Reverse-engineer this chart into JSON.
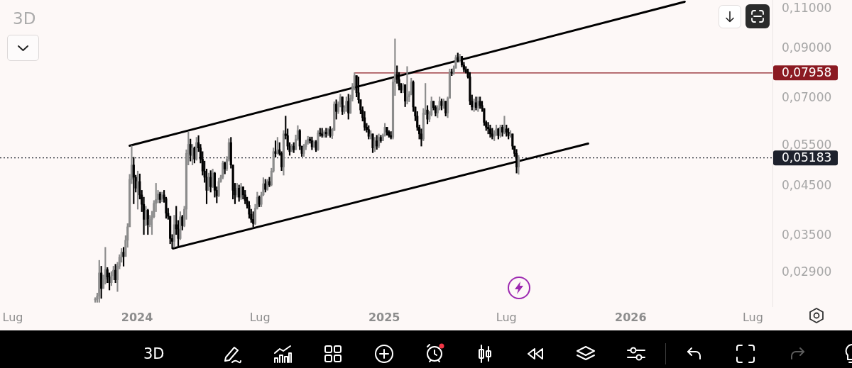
{
  "chart_data": {
    "type": "candlestick",
    "title": "3D",
    "log": true,
    "xlim": [
      "2023-06-12",
      "2026-07-30"
    ],
    "xticks": [
      {
        "value": "2023-07-01",
        "label": "Lug"
      },
      {
        "value": "2024-01-01",
        "label": "2024"
      },
      {
        "value": "2024-07-01",
        "label": "Lug"
      },
      {
        "value": "2025-01-01",
        "label": "2025"
      },
      {
        "value": "2025-07-01",
        "label": "Lug"
      },
      {
        "value": "2026-01-01",
        "label": "2026"
      },
      {
        "value": "2026-07-01",
        "label": "Lug"
      }
    ],
    "ylim": [
      0.0245,
      0.115
    ],
    "yticks": [
      {
        "value": 0.029,
        "label": "0,02900"
      },
      {
        "value": 0.035,
        "label": "0,03500"
      },
      {
        "value": 0.045,
        "label": "0,04500"
      },
      {
        "value": 0.055,
        "label": "0,05500"
      },
      {
        "value": 0.07,
        "label": "0,07000"
      },
      {
        "value": 0.09,
        "label": "0,09000"
      },
      {
        "value": 0.11,
        "label": "0,11000"
      }
    ],
    "colors": [
      "#8c8c8c",
      "#8c8c8c",
      "#8c8c8c",
      "#000000",
      "#8c8c8c",
      "#8c8c8c",
      "#000000",
      "#000000",
      "#8c8c8c",
      "#8c8c8c",
      "#000000",
      "#8c8c8c",
      "#8c8c8c",
      "#8c8c8c",
      "#000000",
      "#8c8c8c",
      "#8c8c8c",
      "#8c8c8c",
      "#8c8c8c",
      "#000000",
      "#000000",
      "#8c8c8c",
      "#000000",
      "#000000",
      "#000000",
      "#8c8c8c",
      "#000000",
      "#8c8c8c",
      "#8c8c8c",
      "#8c8c8c",
      "#8c8c8c",
      "#8c8c8c",
      "#000000",
      "#8c8c8c",
      "#000000",
      "#000000",
      "#000000",
      "#000000",
      "#000000",
      "#8c8c8c",
      "#000000",
      "#000000",
      "#8c8c8c",
      "#000000",
      "#8c8c8c",
      "#8c8c8c",
      "#8c8c8c",
      "#000000",
      "#8c8c8c",
      "#000000",
      "#8c8c8c",
      "#000000",
      "#000000",
      "#000000",
      "#000000",
      "#000000",
      "#8c8c8c",
      "#000000",
      "#8c8c8c",
      "#000000",
      "#000000",
      "#8c8c8c",
      "#8c8c8c",
      "#8c8c8c",
      "#000000",
      "#8c8c8c",
      "#8c8c8c",
      "#000000",
      "#000000",
      "#000000",
      "#8c8c8c",
      "#000000",
      "#8c8c8c",
      "#000000",
      "#000000",
      "#000000",
      "#000000",
      "#000000",
      "#000000",
      "#8c8c8c",
      "#8c8c8c",
      "#000000",
      "#8c8c8c",
      "#8c8c8c",
      "#000000",
      "#8c8c8c",
      "#000000",
      "#8c8c8c",
      "#8c8c8c",
      "#000000",
      "#8c8c8c",
      "#000000",
      "#000000",
      "#8c8c8c",
      "#000000",
      "#000000",
      "#000000",
      "#8c8c8c",
      "#000000",
      "#8c8c8c",
      "#8c8c8c",
      "#000000",
      "#000000",
      "#8c8c8c",
      "#8c8c8c",
      "#8c8c8c",
      "#000000",
      "#000000",
      "#8c8c8c",
      "#000000",
      "#8c8c8c",
      "#000000",
      "#000000",
      "#8c8c8c",
      "#000000",
      "#8c8c8c",
      "#000000",
      "#8c8c8c",
      "#8c8c8c",
      "#000000",
      "#8c8c8c",
      "#8c8c8c",
      "#000000",
      "#8c8c8c",
      "#8c8c8c",
      "#000000",
      "#8c8c8c",
      "#8c8c8c",
      "#8c8c8c",
      "#000000",
      "#000000",
      "#000000",
      "#000000",
      "#000000",
      "#000000",
      "#000000",
      "#8c8c8c",
      "#000000",
      "#8c8c8c",
      "#000000",
      "#8c8c8c",
      "#000000",
      "#8c8c8c",
      "#8c8c8c",
      "#000000",
      "#000000",
      "#000000",
      "#8c8c8c",
      "#8c8c8c",
      "#000000",
      "#000000",
      "#000000",
      "#8c8c8c",
      "#000000",
      "#8c8c8c",
      "#8c8c8c",
      "#8c8c8c",
      "#000000",
      "#000000",
      "#000000",
      "#000000",
      "#000000",
      "#8c8c8c",
      "#8c8c8c",
      "#000000",
      "#8c8c8c",
      "#8c8c8c",
      "#000000",
      "#000000",
      "#8c8c8c",
      "#8c8c8c",
      "#000000",
      "#8c8c8c",
      "#000000",
      "#8c8c8c",
      "#8c8c8c",
      "#000000",
      "#8c8c8c",
      "#8c8c8c",
      "#000000",
      "#8c8c8c",
      "#000000",
      "#000000",
      "#000000",
      "#000000",
      "#000000",
      "#000000",
      "#8c8c8c",
      "#000000",
      "#8c8c8c",
      "#000000",
      "#000000",
      "#000000",
      "#000000",
      "#000000",
      "#000000",
      "#000000",
      "#8c8c8c",
      "#8c8c8c",
      "#000000",
      "#8c8c8c",
      "#000000",
      "#8c8c8c",
      "#000000",
      "#000000",
      "#8c8c8c",
      "#000000",
      "#000000",
      "#000000",
      "#8c8c8c"
    ],
    "x": [
      "2023-10-31",
      "2023-11-03",
      "2023-11-06",
      "2023-11-09",
      "2023-11-12",
      "2023-11-15",
      "2023-11-18",
      "2023-11-21",
      "2023-11-24",
      "2023-11-27",
      "2023-11-30",
      "2023-12-03",
      "2023-12-06",
      "2023-12-09",
      "2023-12-12",
      "2023-12-15",
      "2023-12-18",
      "2023-12-21",
      "2023-12-24",
      "2023-12-27",
      "2023-12-30",
      "2024-01-02",
      "2024-01-05",
      "2024-01-08",
      "2024-01-11",
      "2024-01-14",
      "2024-01-17",
      "2024-01-20",
      "2024-01-23",
      "2024-01-26",
      "2024-01-29",
      "2024-02-01",
      "2024-02-04",
      "2024-02-07",
      "2024-02-10",
      "2024-02-13",
      "2024-02-16",
      "2024-02-19",
      "2024-02-22",
      "2024-02-25",
      "2024-02-28",
      "2024-03-02",
      "2024-03-05",
      "2024-03-08",
      "2024-03-11",
      "2024-03-14",
      "2024-03-17",
      "2024-03-20",
      "2024-03-23",
      "2024-03-26",
      "2024-03-29",
      "2024-04-01",
      "2024-04-04",
      "2024-04-07",
      "2024-04-10",
      "2024-04-13",
      "2024-04-16",
      "2024-04-19",
      "2024-04-22",
      "2024-04-25",
      "2024-04-28",
      "2024-05-01",
      "2024-05-04",
      "2024-05-07",
      "2024-05-10",
      "2024-05-13",
      "2024-05-16",
      "2024-05-19",
      "2024-05-22",
      "2024-05-25",
      "2024-05-28",
      "2024-05-31",
      "2024-06-03",
      "2024-06-06",
      "2024-06-09",
      "2024-06-12",
      "2024-06-15",
      "2024-06-18",
      "2024-06-21",
      "2024-06-24",
      "2024-06-27",
      "2024-06-30",
      "2024-07-03",
      "2024-07-06",
      "2024-07-09",
      "2024-07-12",
      "2024-07-15",
      "2024-07-18",
      "2024-07-21",
      "2024-07-24",
      "2024-07-27",
      "2024-07-30",
      "2024-08-02",
      "2024-08-05",
      "2024-08-08",
      "2024-08-11",
      "2024-08-14",
      "2024-08-17",
      "2024-08-20",
      "2024-08-23",
      "2024-08-26",
      "2024-08-29",
      "2024-09-01",
      "2024-09-04",
      "2024-09-07",
      "2024-09-10",
      "2024-09-13",
      "2024-09-16",
      "2024-09-19",
      "2024-09-22",
      "2024-09-25",
      "2024-09-28",
      "2024-10-01",
      "2024-10-04",
      "2024-10-07",
      "2024-10-10",
      "2024-10-13",
      "2024-10-16",
      "2024-10-19",
      "2024-10-22",
      "2024-10-25",
      "2024-10-28",
      "2024-10-31",
      "2024-11-03",
      "2024-11-06",
      "2024-11-09",
      "2024-11-12",
      "2024-11-15",
      "2024-11-18",
      "2024-11-21",
      "2024-11-24",
      "2024-11-27",
      "2024-11-30",
      "2024-12-03",
      "2024-12-06",
      "2024-12-09",
      "2024-12-12",
      "2024-12-15",
      "2024-12-18",
      "2024-12-21",
      "2024-12-24",
      "2024-12-27",
      "2024-12-30",
      "2025-01-02",
      "2025-01-05",
      "2025-01-08",
      "2025-01-11",
      "2025-01-14",
      "2025-01-17",
      "2025-01-20",
      "2025-01-23",
      "2025-01-26",
      "2025-01-29",
      "2025-02-01",
      "2025-02-04",
      "2025-02-07",
      "2025-02-10",
      "2025-02-13",
      "2025-02-16",
      "2025-02-19",
      "2025-02-22",
      "2025-02-25",
      "2025-02-28",
      "2025-03-03",
      "2025-03-06",
      "2025-03-09",
      "2025-03-12",
      "2025-03-15",
      "2025-03-18",
      "2025-03-21",
      "2025-03-24",
      "2025-03-27",
      "2025-03-30",
      "2025-04-02",
      "2025-04-05",
      "2025-04-08",
      "2025-04-11",
      "2025-04-14",
      "2025-04-17",
      "2025-04-20",
      "2025-04-23",
      "2025-04-26",
      "2025-04-29",
      "2025-05-02",
      "2025-05-05",
      "2025-05-08",
      "2025-05-11",
      "2025-05-14",
      "2025-05-17",
      "2025-05-20",
      "2025-05-23",
      "2025-05-26",
      "2025-05-29",
      "2025-06-01",
      "2025-06-04",
      "2025-06-07",
      "2025-06-10",
      "2025-06-13",
      "2025-06-16",
      "2025-06-19",
      "2025-06-22",
      "2025-06-25",
      "2025-06-28",
      "2025-07-01",
      "2025-07-04",
      "2025-07-07",
      "2025-07-10",
      "2025-07-13",
      "2025-07-16",
      "2025-07-19"
    ],
    "ohlc": [
      [
        0.0253,
        0.0256,
        0.025,
        0.0254
      ],
      [
        0.0254,
        0.0262,
        0.025,
        0.0258
      ],
      [
        0.0258,
        0.0309,
        0.025,
        0.029
      ],
      [
        0.029,
        0.03,
        0.0255,
        0.0268
      ],
      [
        0.0268,
        0.0287,
        0.0268,
        0.0281
      ],
      [
        0.0281,
        0.033,
        0.0274,
        0.0295
      ],
      [
        0.0295,
        0.0298,
        0.0276,
        0.0284
      ],
      [
        0.0284,
        0.029,
        0.0266,
        0.0276
      ],
      [
        0.0276,
        0.0292,
        0.0272,
        0.0286
      ],
      [
        0.0286,
        0.03,
        0.028,
        0.0294
      ],
      [
        0.0294,
        0.0303,
        0.0276,
        0.028
      ],
      [
        0.028,
        0.0306,
        0.0264,
        0.03
      ],
      [
        0.03,
        0.0318,
        0.0296,
        0.0314
      ],
      [
        0.0314,
        0.0328,
        0.0306,
        0.0322
      ],
      [
        0.0322,
        0.033,
        0.03,
        0.0315
      ],
      [
        0.0315,
        0.035,
        0.0315,
        0.0342
      ],
      [
        0.0342,
        0.0372,
        0.033,
        0.0366
      ],
      [
        0.0366,
        0.0477,
        0.0366,
        0.0465
      ],
      [
        0.0465,
        0.0551,
        0.0455,
        0.05
      ],
      [
        0.05,
        0.052,
        0.0411,
        0.047
      ],
      [
        0.047,
        0.0475,
        0.0436,
        0.0445
      ],
      [
        0.0445,
        0.0485,
        0.04,
        0.046
      ],
      [
        0.046,
        0.0478,
        0.0421,
        0.043
      ],
      [
        0.043,
        0.044,
        0.0395,
        0.041
      ],
      [
        0.041,
        0.0425,
        0.0352,
        0.038
      ],
      [
        0.038,
        0.0406,
        0.0368,
        0.0398
      ],
      [
        0.0398,
        0.04,
        0.0352,
        0.037
      ],
      [
        0.037,
        0.0388,
        0.0366,
        0.038
      ],
      [
        0.038,
        0.0396,
        0.0352,
        0.0385
      ],
      [
        0.0385,
        0.0418,
        0.0383,
        0.0412
      ],
      [
        0.0412,
        0.0456,
        0.0395,
        0.042
      ],
      [
        0.042,
        0.044,
        0.0413,
        0.0432
      ],
      [
        0.0432,
        0.0436,
        0.0413,
        0.042
      ],
      [
        0.042,
        0.0436,
        0.0415,
        0.043
      ],
      [
        0.043,
        0.044,
        0.0414,
        0.0422
      ],
      [
        0.0422,
        0.0425,
        0.0382,
        0.0392
      ],
      [
        0.0392,
        0.0402,
        0.038,
        0.0386
      ],
      [
        0.0386,
        0.0386,
        0.0336,
        0.0345
      ],
      [
        0.0345,
        0.0352,
        0.0328,
        0.034
      ],
      [
        0.034,
        0.0388,
        0.033,
        0.037
      ],
      [
        0.037,
        0.0406,
        0.0352,
        0.0362
      ],
      [
        0.0362,
        0.0378,
        0.0332,
        0.0345
      ],
      [
        0.0345,
        0.0395,
        0.0343,
        0.0385
      ],
      [
        0.0385,
        0.0388,
        0.036,
        0.0368
      ],
      [
        0.0368,
        0.0406,
        0.0366,
        0.04
      ],
      [
        0.04,
        0.054,
        0.038,
        0.053
      ],
      [
        0.053,
        0.0591,
        0.05,
        0.0555
      ],
      [
        0.0555,
        0.057,
        0.051,
        0.0525
      ],
      [
        0.0525,
        0.0555,
        0.05,
        0.0545
      ],
      [
        0.0545,
        0.0548,
        0.0505,
        0.0515
      ],
      [
        0.0515,
        0.0575,
        0.0512,
        0.056
      ],
      [
        0.056,
        0.058,
        0.0535,
        0.0545
      ],
      [
        0.0545,
        0.0555,
        0.0505,
        0.0515
      ],
      [
        0.0515,
        0.0535,
        0.0475,
        0.0485
      ],
      [
        0.0485,
        0.051,
        0.0458,
        0.047
      ],
      [
        0.047,
        0.049,
        0.0411,
        0.044
      ],
      [
        0.044,
        0.048,
        0.044,
        0.047
      ],
      [
        0.047,
        0.0486,
        0.0436,
        0.0448
      ],
      [
        0.0448,
        0.049,
        0.0446,
        0.048
      ],
      [
        0.048,
        0.0482,
        0.0425,
        0.044
      ],
      [
        0.044,
        0.0448,
        0.0413,
        0.0428
      ],
      [
        0.0428,
        0.0468,
        0.0426,
        0.046
      ],
      [
        0.046,
        0.0475,
        0.0458,
        0.047
      ],
      [
        0.047,
        0.051,
        0.0466,
        0.0505
      ],
      [
        0.0505,
        0.0508,
        0.0478,
        0.049
      ],
      [
        0.049,
        0.0522,
        0.0486,
        0.0515
      ],
      [
        0.0515,
        0.0571,
        0.051,
        0.056
      ],
      [
        0.056,
        0.0575,
        0.0492,
        0.05
      ],
      [
        0.05,
        0.05,
        0.0421,
        0.044
      ],
      [
        0.044,
        0.0456,
        0.0411,
        0.043
      ],
      [
        0.043,
        0.0456,
        0.0425,
        0.0445
      ],
      [
        0.0445,
        0.0452,
        0.0416,
        0.0425
      ],
      [
        0.0425,
        0.0456,
        0.042,
        0.0448
      ],
      [
        0.0448,
        0.0448,
        0.0421,
        0.043
      ],
      [
        0.043,
        0.044,
        0.0411,
        0.0418
      ],
      [
        0.0418,
        0.0425,
        0.0402,
        0.0408
      ],
      [
        0.0408,
        0.0416,
        0.0382,
        0.039
      ],
      [
        0.039,
        0.04,
        0.0374,
        0.038
      ],
      [
        0.038,
        0.0395,
        0.0366,
        0.0372
      ],
      [
        0.0372,
        0.041,
        0.037,
        0.0402
      ],
      [
        0.0402,
        0.0436,
        0.04,
        0.0425
      ],
      [
        0.0425,
        0.0428,
        0.0405,
        0.041
      ],
      [
        0.041,
        0.0436,
        0.0405,
        0.043
      ],
      [
        0.043,
        0.0469,
        0.0428,
        0.0455
      ],
      [
        0.0455,
        0.0465,
        0.0436,
        0.0442
      ],
      [
        0.0442,
        0.0465,
        0.044,
        0.046
      ],
      [
        0.046,
        0.047,
        0.0448,
        0.0452
      ],
      [
        0.0452,
        0.0492,
        0.045,
        0.0485
      ],
      [
        0.0485,
        0.0545,
        0.0482,
        0.0535
      ],
      [
        0.0535,
        0.0565,
        0.052,
        0.053
      ],
      [
        0.053,
        0.0575,
        0.0528,
        0.054
      ],
      [
        0.054,
        0.056,
        0.0525,
        0.053
      ],
      [
        0.053,
        0.0535,
        0.0486,
        0.0495
      ],
      [
        0.0495,
        0.0595,
        0.0475,
        0.0585
      ],
      [
        0.0585,
        0.064,
        0.057,
        0.058
      ],
      [
        0.058,
        0.06,
        0.054,
        0.055
      ],
      [
        0.055,
        0.056,
        0.0525,
        0.0535
      ],
      [
        0.0535,
        0.0555,
        0.0535,
        0.055
      ],
      [
        0.055,
        0.056,
        0.0532,
        0.054
      ],
      [
        0.054,
        0.0582,
        0.054,
        0.057
      ],
      [
        0.057,
        0.061,
        0.0566,
        0.0595
      ],
      [
        0.0595,
        0.0598,
        0.054,
        0.055
      ],
      [
        0.055,
        0.055,
        0.0522,
        0.053
      ],
      [
        0.053,
        0.0555,
        0.0522,
        0.0548
      ],
      [
        0.0548,
        0.0567,
        0.054,
        0.056
      ],
      [
        0.056,
        0.0578,
        0.0555,
        0.057
      ],
      [
        0.057,
        0.0576,
        0.0558,
        0.0565
      ],
      [
        0.0565,
        0.0576,
        0.054,
        0.0548
      ],
      [
        0.0548,
        0.0566,
        0.0546,
        0.0562
      ],
      [
        0.0562,
        0.0566,
        0.0535,
        0.054
      ],
      [
        0.054,
        0.0595,
        0.0538,
        0.0588
      ],
      [
        0.0588,
        0.0602,
        0.0578,
        0.0585
      ],
      [
        0.0585,
        0.0602,
        0.0575,
        0.058
      ],
      [
        0.058,
        0.0595,
        0.0575,
        0.059
      ],
      [
        0.059,
        0.0602,
        0.0575,
        0.0585
      ],
      [
        0.0585,
        0.0602,
        0.058,
        0.0598
      ],
      [
        0.0598,
        0.0607,
        0.0575,
        0.058
      ],
      [
        0.058,
        0.0602,
        0.0571,
        0.0595
      ],
      [
        0.0595,
        0.0688,
        0.0595,
        0.068
      ],
      [
        0.068,
        0.0695,
        0.063,
        0.0655
      ],
      [
        0.0655,
        0.0688,
        0.0648,
        0.068
      ],
      [
        0.068,
        0.0715,
        0.067,
        0.0705
      ],
      [
        0.0705,
        0.0705,
        0.0645,
        0.0655
      ],
      [
        0.0655,
        0.0675,
        0.0648,
        0.0668
      ],
      [
        0.0668,
        0.0705,
        0.0655,
        0.069
      ],
      [
        0.069,
        0.0715,
        0.063,
        0.065
      ],
      [
        0.065,
        0.0712,
        0.0648,
        0.07
      ],
      [
        0.07,
        0.0755,
        0.069,
        0.0745
      ],
      [
        0.0745,
        0.0796,
        0.073,
        0.0785
      ],
      [
        0.0785,
        0.0785,
        0.0705,
        0.072
      ],
      [
        0.072,
        0.078,
        0.0683,
        0.0695
      ],
      [
        0.0695,
        0.0695,
        0.0647,
        0.066
      ],
      [
        0.066,
        0.0671,
        0.0624,
        0.0635
      ],
      [
        0.0635,
        0.0655,
        0.0595,
        0.0605
      ],
      [
        0.0605,
        0.0617,
        0.059,
        0.0598
      ],
      [
        0.0598,
        0.061,
        0.057,
        0.0578
      ],
      [
        0.0578,
        0.0595,
        0.057,
        0.0585
      ],
      [
        0.0585,
        0.0585,
        0.0532,
        0.0545
      ],
      [
        0.0545,
        0.0575,
        0.0535,
        0.0565
      ],
      [
        0.0565,
        0.0581,
        0.0541,
        0.055
      ],
      [
        0.055,
        0.0585,
        0.0545,
        0.0575
      ],
      [
        0.0575,
        0.0581,
        0.056,
        0.0565
      ],
      [
        0.0565,
        0.0585,
        0.0565,
        0.058
      ],
      [
        0.058,
        0.0617,
        0.0578,
        0.0605
      ],
      [
        0.0605,
        0.0605,
        0.0581,
        0.059
      ],
      [
        0.059,
        0.0595,
        0.0575,
        0.058
      ],
      [
        0.058,
        0.0592,
        0.057,
        0.0575
      ],
      [
        0.0575,
        0.0774,
        0.057,
        0.076
      ],
      [
        0.076,
        0.0945,
        0.071,
        0.079
      ],
      [
        0.079,
        0.0825,
        0.0755,
        0.077
      ],
      [
        0.077,
        0.0798,
        0.073,
        0.0745
      ],
      [
        0.0745,
        0.0755,
        0.072,
        0.073
      ],
      [
        0.073,
        0.0755,
        0.072,
        0.075
      ],
      [
        0.075,
        0.075,
        0.0671,
        0.069
      ],
      [
        0.069,
        0.0822,
        0.068,
        0.0705
      ],
      [
        0.0705,
        0.0725,
        0.0688,
        0.0715
      ],
      [
        0.0715,
        0.0775,
        0.0712,
        0.076
      ],
      [
        0.076,
        0.0765,
        0.0655,
        0.067
      ],
      [
        0.067,
        0.067,
        0.0625,
        0.064
      ],
      [
        0.064,
        0.0655,
        0.0595,
        0.0605
      ],
      [
        0.0605,
        0.0612,
        0.057,
        0.0585
      ],
      [
        0.0585,
        0.06,
        0.055,
        0.057
      ],
      [
        0.057,
        0.0665,
        0.0565,
        0.065
      ],
      [
        0.065,
        0.0755,
        0.0645,
        0.066
      ],
      [
        0.066,
        0.0675,
        0.0615,
        0.063
      ],
      [
        0.063,
        0.0655,
        0.0622,
        0.0645
      ],
      [
        0.0645,
        0.0705,
        0.064,
        0.069
      ],
      [
        0.069,
        0.069,
        0.066,
        0.0668
      ],
      [
        0.0668,
        0.0675,
        0.064,
        0.065
      ],
      [
        0.065,
        0.0675,
        0.0635,
        0.0665
      ],
      [
        0.0665,
        0.0705,
        0.066,
        0.069
      ],
      [
        0.069,
        0.0698,
        0.066,
        0.0675
      ],
      [
        0.0675,
        0.0698,
        0.0665,
        0.069
      ],
      [
        0.069,
        0.069,
        0.064,
        0.065
      ],
      [
        0.065,
        0.0705,
        0.0635,
        0.07
      ],
      [
        0.07,
        0.0812,
        0.07,
        0.08
      ],
      [
        0.08,
        0.0812,
        0.0785,
        0.0795
      ],
      [
        0.0795,
        0.0825,
        0.079,
        0.0815
      ],
      [
        0.0815,
        0.087,
        0.0815,
        0.086
      ],
      [
        0.086,
        0.088,
        0.084,
        0.085
      ],
      [
        0.085,
        0.0875,
        0.084,
        0.0865
      ],
      [
        0.0865,
        0.0865,
        0.082,
        0.0828
      ],
      [
        0.0828,
        0.084,
        0.08,
        0.081
      ],
      [
        0.081,
        0.0822,
        0.0795,
        0.08
      ],
      [
        0.08,
        0.0812,
        0.0775,
        0.078
      ],
      [
        0.078,
        0.0798,
        0.0678,
        0.069
      ],
      [
        0.069,
        0.0712,
        0.066,
        0.067
      ],
      [
        0.067,
        0.0698,
        0.0655,
        0.0685
      ],
      [
        0.0685,
        0.0705,
        0.066,
        0.0668
      ],
      [
        0.0668,
        0.0705,
        0.0655,
        0.069
      ],
      [
        0.069,
        0.0705,
        0.0665,
        0.0675
      ],
      [
        0.0675,
        0.069,
        0.0655,
        0.0665
      ],
      [
        0.0665,
        0.0665,
        0.061,
        0.062
      ],
      [
        0.062,
        0.0625,
        0.0595,
        0.0605
      ],
      [
        0.0605,
        0.062,
        0.0585,
        0.06
      ],
      [
        0.06,
        0.0612,
        0.0575,
        0.0585
      ],
      [
        0.0585,
        0.0602,
        0.057,
        0.0578
      ],
      [
        0.0578,
        0.0595,
        0.0565,
        0.059
      ],
      [
        0.059,
        0.0612,
        0.058,
        0.06
      ],
      [
        0.06,
        0.0602,
        0.057,
        0.058
      ],
      [
        0.058,
        0.0612,
        0.0575,
        0.0605
      ],
      [
        0.0605,
        0.0612,
        0.0578,
        0.059
      ],
      [
        0.059,
        0.064,
        0.0585,
        0.06
      ],
      [
        0.06,
        0.0612,
        0.0578,
        0.059
      ],
      [
        0.059,
        0.0602,
        0.057,
        0.058
      ],
      [
        0.058,
        0.0595,
        0.0575,
        0.0585
      ],
      [
        0.0585,
        0.0585,
        0.0541,
        0.055
      ],
      [
        0.055,
        0.055,
        0.0522,
        0.053
      ],
      [
        0.053,
        0.0541,
        0.048,
        0.0495
      ],
      [
        0.0495,
        0.0525,
        0.0477,
        0.05183
      ]
    ],
    "series": [
      {
        "type": "line",
        "x": [
          "2023-12-21",
          "2026-03-22"
        ],
        "values": [
          0.0551,
          0.114
        ],
        "color": "#000000"
      },
      {
        "type": "line",
        "x": [
          "2024-02-23",
          "2025-10-30"
        ],
        "values": [
          0.0328,
          0.0557
        ],
        "color": "#000000"
      },
      {
        "type": "line",
        "name": "0,07958",
        "x": [
          "2024-11-18",
          "2026-07-30"
        ],
        "values": [
          0.07958,
          0.07958
        ],
        "color": "#8b1a22"
      }
    ],
    "ref_lines": [
      {
        "axis": "y",
        "value": 0.05183,
        "label": "0,05183",
        "color": "#1e222d",
        "line_style": "dotted"
      }
    ],
    "annotations": [
      "3D"
    ]
  }
}
